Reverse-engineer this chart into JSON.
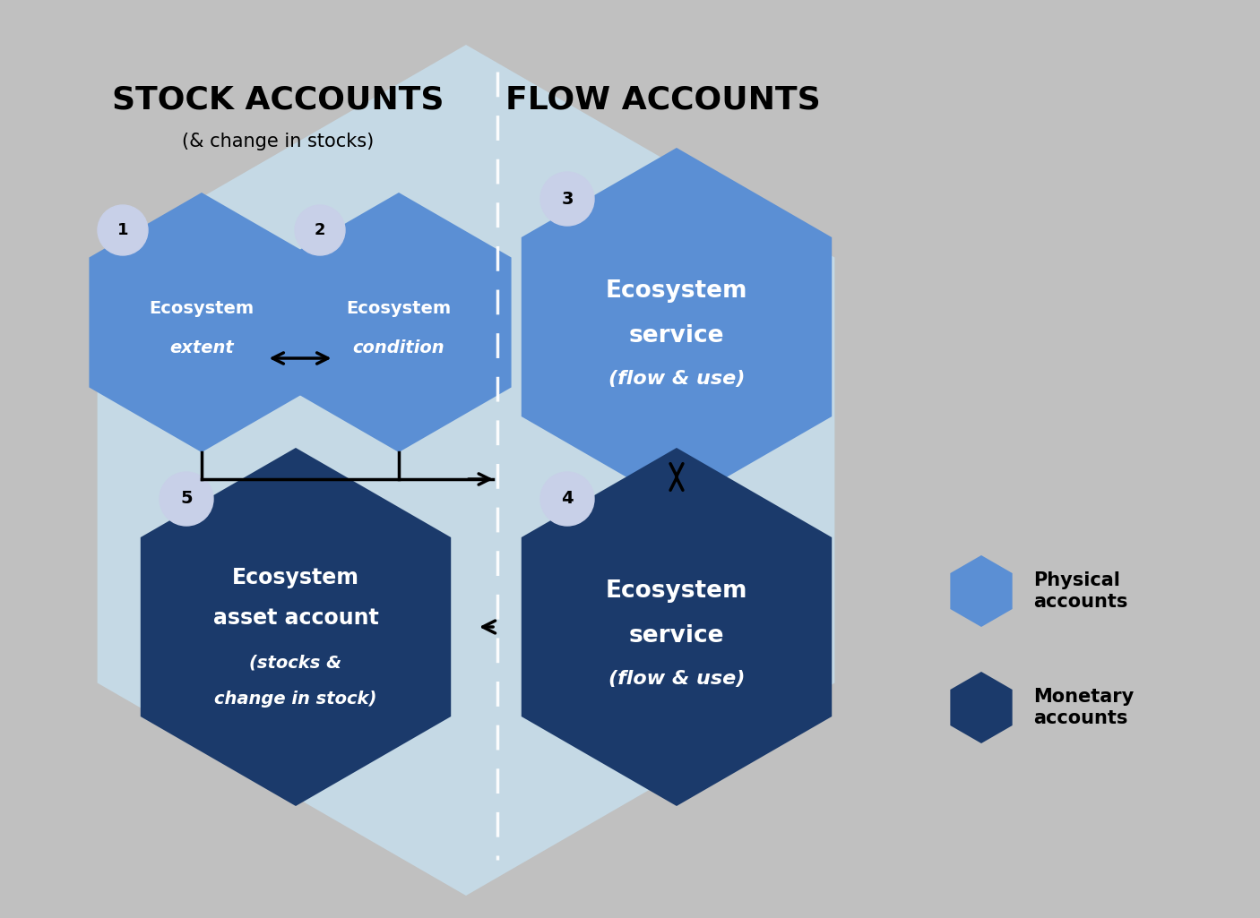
{
  "bg_outer": "#c0c0c0",
  "bg_inner": "#c5d9e5",
  "color_physical": "#5b8fd4",
  "color_monetary": "#1b3a6b",
  "color_number_bg": "#c8d0e8",
  "color_white": "#ffffff",
  "color_black": "#000000",
  "stock_title": "STOCK ACCOUNTS",
  "stock_subtitle": "(& change in stocks)",
  "flow_title": "FLOW ACCOUNTS",
  "hex1_line1": "Ecosystem",
  "hex1_line2": "extent",
  "hex2_line1": "Ecosystem",
  "hex2_line2": "condition",
  "hex3_line1": "Ecosystem",
  "hex3_line2": "service",
  "hex3_line3": "(flow & use)",
  "hex4_line1": "Ecosystem",
  "hex4_line2": "service",
  "hex4_line3": "(flow & use)",
  "hex5_line1": "Ecosystem",
  "hex5_line2": "asset account",
  "hex5_line3": "(stocks &",
  "hex5_line4": "change in stock)",
  "legend_physical": "Physical\naccounts",
  "legend_monetary": "Monetary\naccounts"
}
